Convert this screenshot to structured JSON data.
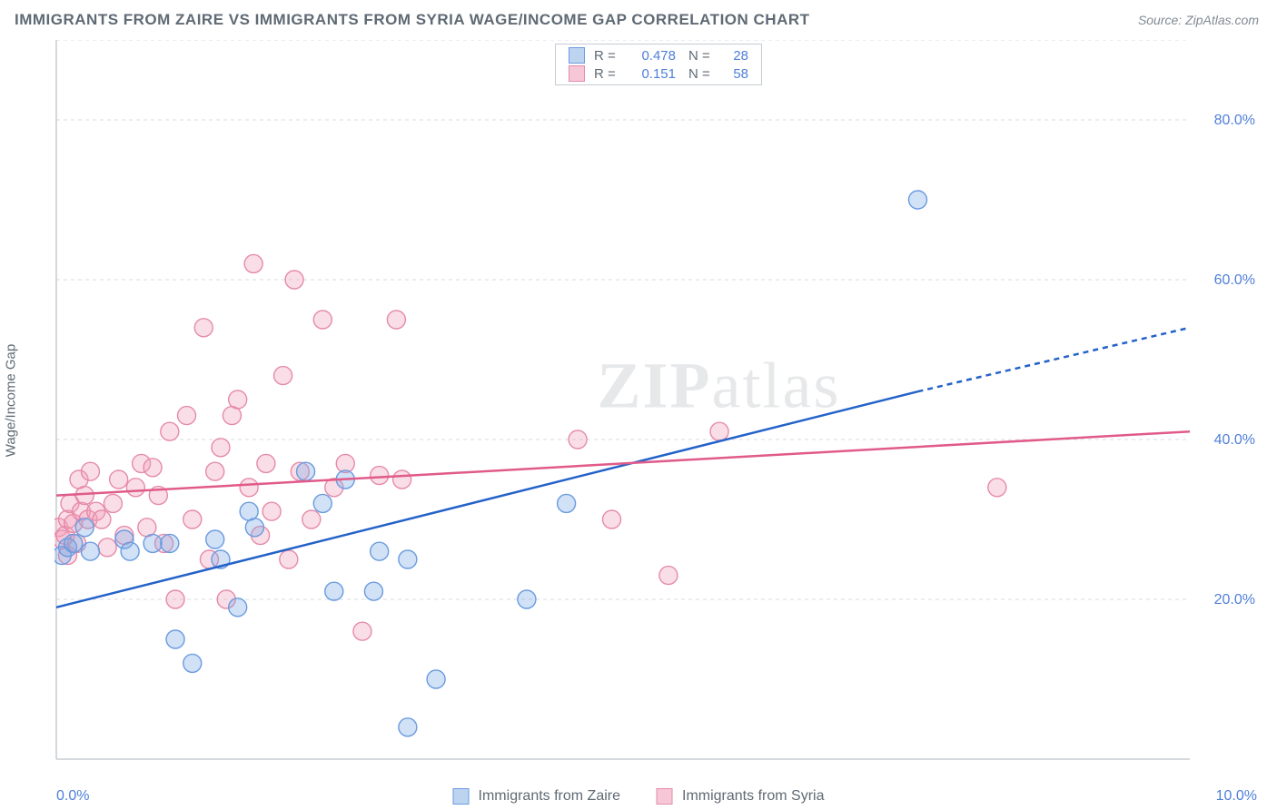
{
  "header": {
    "title": "IMMIGRANTS FROM ZAIRE VS IMMIGRANTS FROM SYRIA WAGE/INCOME GAP CORRELATION CHART",
    "source": "Source: ZipAtlas.com"
  },
  "chart": {
    "type": "scatter",
    "y_axis_label": "Wage/Income Gap",
    "xlim": [
      0,
      10
    ],
    "ylim": [
      0,
      90
    ],
    "x_ticks": [
      {
        "v": 0,
        "label": "0.0%"
      },
      {
        "v": 10,
        "label": "10.0%"
      }
    ],
    "y_ticks": [
      {
        "v": 20,
        "label": "20.0%"
      },
      {
        "v": 40,
        "label": "40.0%"
      },
      {
        "v": 60,
        "label": "60.0%"
      },
      {
        "v": 80,
        "label": "80.0%"
      }
    ],
    "y_gridlines": [
      20,
      40,
      60,
      80,
      90
    ],
    "grid_color": "#d7dbe0",
    "grid_dash": "4,4",
    "axis_color": "#c7ccd2",
    "background_color": "#ffffff",
    "y_tick_color": "#4f7fd9",
    "x_tick_color": "#4f7fd9",
    "marker_radius": 10,
    "marker_stroke_width": 1.4,
    "trend_line_width": 2.5,
    "watermark": "ZIPatlas",
    "series": [
      {
        "name": "Immigrants from Zaire",
        "fill": "rgba(122,168,230,0.35)",
        "stroke": "#6a9be0",
        "swatch_fill": "#bdd4f1",
        "swatch_stroke": "#6a9be0",
        "trend_color": "#2362c9",
        "R": "0.478",
        "N": "28",
        "trend": {
          "x1": 0,
          "y1": 19,
          "x2": 7.6,
          "y2": 46,
          "x_solid_end": 7.6,
          "x3": 10,
          "y3": 54
        },
        "points": [
          [
            0.05,
            25.5
          ],
          [
            0.1,
            26.5
          ],
          [
            0.15,
            27
          ],
          [
            0.25,
            29
          ],
          [
            0.3,
            26
          ],
          [
            0.6,
            27.5
          ],
          [
            0.65,
            26
          ],
          [
            0.85,
            27
          ],
          [
            1.0,
            27
          ],
          [
            1.05,
            15
          ],
          [
            1.2,
            12
          ],
          [
            1.4,
            27.5
          ],
          [
            1.45,
            25
          ],
          [
            1.6,
            19
          ],
          [
            1.7,
            31
          ],
          [
            1.75,
            29
          ],
          [
            2.2,
            36
          ],
          [
            2.35,
            32
          ],
          [
            2.45,
            21
          ],
          [
            2.55,
            35
          ],
          [
            2.85,
            26
          ],
          [
            2.8,
            21
          ],
          [
            3.1,
            25
          ],
          [
            3.1,
            4
          ],
          [
            3.35,
            10
          ],
          [
            4.15,
            20
          ],
          [
            4.5,
            32
          ],
          [
            7.6,
            70
          ]
        ]
      },
      {
        "name": "Immigrants from Syria",
        "fill": "rgba(240,160,185,0.35)",
        "stroke": "#e68aa8",
        "swatch_fill": "#f6c8d7",
        "swatch_stroke": "#e68aa8",
        "trend_color": "#e05a8a",
        "R": "0.151",
        "N": "58",
        "trend": {
          "x1": 0,
          "y1": 33,
          "x2": 10,
          "y2": 41,
          "x_solid_end": 10,
          "x3": 10,
          "y3": 41
        },
        "points": [
          [
            0.02,
            29
          ],
          [
            0.05,
            27.5
          ],
          [
            0.08,
            28
          ],
          [
            0.1,
            30
          ],
          [
            0.1,
            25.5
          ],
          [
            0.12,
            32
          ],
          [
            0.15,
            29.5
          ],
          [
            0.18,
            27
          ],
          [
            0.2,
            35
          ],
          [
            0.22,
            31
          ],
          [
            0.25,
            33
          ],
          [
            0.28,
            30
          ],
          [
            0.3,
            36
          ],
          [
            0.35,
            31
          ],
          [
            0.4,
            30
          ],
          [
            0.45,
            26.5
          ],
          [
            0.5,
            32
          ],
          [
            0.55,
            35
          ],
          [
            0.6,
            28
          ],
          [
            0.7,
            34
          ],
          [
            0.75,
            37
          ],
          [
            0.8,
            29
          ],
          [
            0.85,
            36.5
          ],
          [
            0.9,
            33
          ],
          [
            0.95,
            27
          ],
          [
            1.0,
            41
          ],
          [
            1.05,
            20
          ],
          [
            1.15,
            43
          ],
          [
            1.2,
            30
          ],
          [
            1.3,
            54
          ],
          [
            1.35,
            25
          ],
          [
            1.4,
            36
          ],
          [
            1.45,
            39
          ],
          [
            1.5,
            20
          ],
          [
            1.55,
            43
          ],
          [
            1.6,
            45
          ],
          [
            1.7,
            34
          ],
          [
            1.74,
            62
          ],
          [
            1.8,
            28
          ],
          [
            1.85,
            37
          ],
          [
            1.9,
            31
          ],
          [
            2.0,
            48
          ],
          [
            2.05,
            25
          ],
          [
            2.1,
            60
          ],
          [
            2.15,
            36
          ],
          [
            2.25,
            30
          ],
          [
            2.35,
            55
          ],
          [
            2.45,
            34
          ],
          [
            2.55,
            37
          ],
          [
            2.7,
            16
          ],
          [
            2.85,
            35.5
          ],
          [
            3.0,
            55
          ],
          [
            3.05,
            35
          ],
          [
            4.6,
            40
          ],
          [
            4.9,
            30
          ],
          [
            5.4,
            23
          ],
          [
            5.85,
            41
          ],
          [
            8.3,
            34
          ]
        ]
      }
    ],
    "legend_bottom": {
      "items": [
        "Immigrants from Zaire",
        "Immigrants from Syria"
      ]
    }
  }
}
